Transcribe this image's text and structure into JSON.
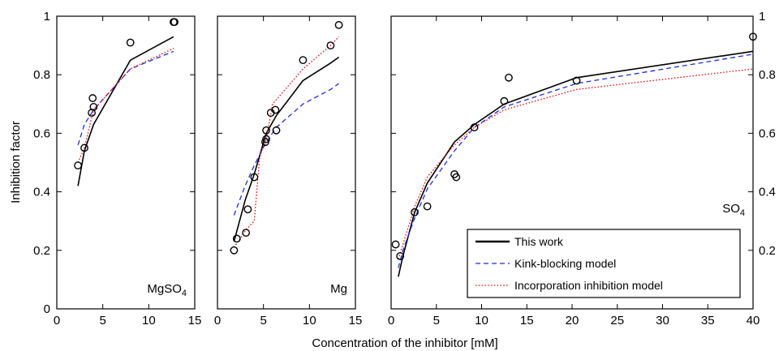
{
  "chart_data": {
    "type": "line",
    "ylabel": "Inhibition factor",
    "xlabel": "Concentration of the inhibitor [mM]",
    "ylim": [
      0,
      1
    ],
    "yticks": [
      "0",
      "0.2",
      "0.4",
      "0.6",
      "0.8",
      "1"
    ],
    "yticks_right": [
      "0.2",
      "0.4",
      "0.6",
      "0.8",
      "1"
    ],
    "legend": [
      {
        "name": "This work",
        "style": "solid",
        "color": "#000000"
      },
      {
        "name": "Kink-blocking model",
        "style": "dashed",
        "color": "#1f2fd6"
      },
      {
        "name": "Incorporation inhibition model",
        "style": "dotted",
        "color": "#e01010"
      }
    ],
    "panels": [
      {
        "label": "MgSO",
        "label_sub": "4",
        "xlim": [
          0,
          15
        ],
        "xticks": [
          "0",
          "5",
          "10",
          "15"
        ],
        "points": [
          [
            2.3,
            0.49
          ],
          [
            3.0,
            0.55
          ],
          [
            3.8,
            0.67
          ],
          [
            3.9,
            0.72
          ],
          [
            4.0,
            0.69
          ],
          [
            8.0,
            0.91
          ],
          [
            12.7,
            0.98
          ],
          [
            12.8,
            0.98
          ]
        ],
        "series": [
          {
            "name": "This work",
            "x": [
              2.3,
              3.0,
              4.0,
              8.0,
              12.7
            ],
            "y": [
              0.42,
              0.54,
              0.63,
              0.85,
              0.93
            ]
          },
          {
            "name": "Kink-blocking model",
            "x": [
              2.3,
              3.0,
              4.0,
              8.0,
              12.7
            ],
            "y": [
              0.56,
              0.63,
              0.68,
              0.82,
              0.88
            ]
          },
          {
            "name": "Incorporation inhibition model",
            "x": [
              2.3,
              3.0,
              4.0,
              8.0,
              12.7
            ],
            "y": [
              0.5,
              0.55,
              0.68,
              0.82,
              0.89
            ]
          }
        ]
      },
      {
        "label": "Mg",
        "label_sub": "",
        "xlim": [
          0,
          15
        ],
        "xticks": [
          "0",
          "5",
          "10",
          "15"
        ],
        "points": [
          [
            1.8,
            0.2
          ],
          [
            2.1,
            0.24
          ],
          [
            3.1,
            0.26
          ],
          [
            3.3,
            0.34
          ],
          [
            4.0,
            0.45
          ],
          [
            5.2,
            0.57
          ],
          [
            5.3,
            0.58
          ],
          [
            5.3,
            0.61
          ],
          [
            5.8,
            0.67
          ],
          [
            6.3,
            0.68
          ],
          [
            6.4,
            0.61
          ],
          [
            9.3,
            0.85
          ],
          [
            12.3,
            0.9
          ],
          [
            13.2,
            0.97
          ]
        ],
        "series": [
          {
            "name": "This work",
            "x": [
              1.8,
              3.0,
              4.0,
              5.3,
              6.4,
              9.3,
              12.3,
              13.2
            ],
            "y": [
              0.23,
              0.37,
              0.46,
              0.6,
              0.66,
              0.78,
              0.84,
              0.86
            ]
          },
          {
            "name": "Kink-blocking model",
            "x": [
              1.8,
              3.0,
              4.0,
              5.3,
              6.4,
              9.3,
              12.3,
              13.2
            ],
            "y": [
              0.32,
              0.42,
              0.49,
              0.57,
              0.62,
              0.7,
              0.75,
              0.77
            ]
          },
          {
            "name": "Incorporation inhibition model",
            "x": [
              1.8,
              3.1,
              4.0,
              4.6,
              5.3,
              6.0,
              9.3,
              12.3,
              13.2
            ],
            "y": [
              0.21,
              0.27,
              0.3,
              0.52,
              0.58,
              0.7,
              0.82,
              0.9,
              0.93
            ]
          }
        ]
      },
      {
        "label": "SO",
        "label_sub": "4",
        "xlim": [
          0,
          40
        ],
        "xticks": [
          "0",
          "5",
          "10",
          "15",
          "20",
          "25",
          "30",
          "35",
          "40"
        ],
        "points": [
          [
            0.5,
            0.22
          ],
          [
            1.0,
            0.18
          ],
          [
            2.6,
            0.33
          ],
          [
            4.0,
            0.35
          ],
          [
            7.0,
            0.46
          ],
          [
            7.2,
            0.45
          ],
          [
            9.2,
            0.62
          ],
          [
            12.5,
            0.71
          ],
          [
            13.0,
            0.79
          ],
          [
            20.5,
            0.78
          ],
          [
            40.0,
            0.93
          ]
        ],
        "series": [
          {
            "name": "This work",
            "x": [
              0.8,
              1.3,
              2.6,
              4.0,
              7.0,
              9.2,
              12.5,
              20.5,
              40.0
            ],
            "y": [
              0.11,
              0.18,
              0.33,
              0.43,
              0.57,
              0.63,
              0.7,
              0.79,
              0.88
            ]
          },
          {
            "name": "Kink-blocking model",
            "x": [
              0.8,
              1.3,
              2.6,
              4.0,
              7.0,
              9.2,
              12.5,
              20.5,
              40.0
            ],
            "y": [
              0.14,
              0.2,
              0.31,
              0.41,
              0.54,
              0.62,
              0.69,
              0.77,
              0.87
            ]
          },
          {
            "name": "Incorporation inhibition model",
            "x": [
              0.8,
              1.3,
              2.6,
              4.0,
              7.0,
              9.2,
              12.5,
              20.5,
              40.0
            ],
            "y": [
              0.17,
              0.22,
              0.35,
              0.45,
              0.56,
              0.62,
              0.68,
              0.75,
              0.82
            ]
          }
        ]
      }
    ]
  }
}
